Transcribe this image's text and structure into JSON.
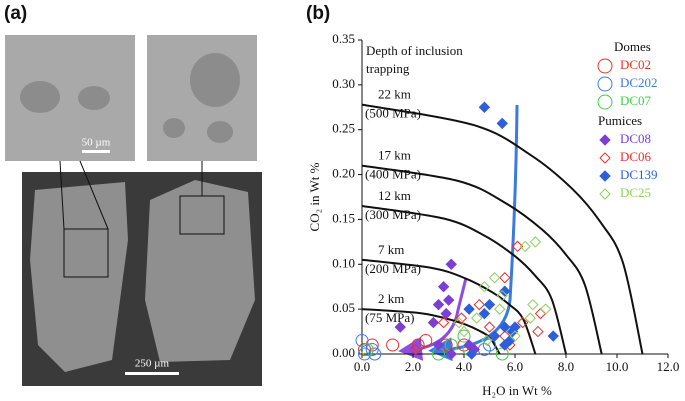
{
  "panel_a": {
    "label": "(a)",
    "scale_bar_small": "50 µm",
    "scale_bar_large": "250 µm"
  },
  "chart_data": {
    "type": "scatter",
    "panel_label": "(b)",
    "xlabel": "H₂O in Wt %",
    "ylabel": "CO₂ in Wt %",
    "annotation": [
      "Depth of inclusion",
      "trapping"
    ],
    "xlim": [
      0,
      12
    ],
    "ylim": [
      0,
      0.35
    ],
    "xticks": [
      {
        "value": 0,
        "label": "0.0"
      },
      {
        "value": 2,
        "label": "2.0"
      },
      {
        "value": 4,
        "label": "4.0"
      },
      {
        "value": 6,
        "label": "6.0"
      },
      {
        "value": 8,
        "label": "8.0"
      },
      {
        "value": 10,
        "label": "10.0"
      },
      {
        "value": 12,
        "label": "12.0"
      }
    ],
    "yticks": [
      {
        "value": 0,
        "label": "0.00"
      },
      {
        "value": 0.05,
        "label": "0.05"
      },
      {
        "value": 0.1,
        "label": "0.10"
      },
      {
        "value": 0.15,
        "label": "0.15"
      },
      {
        "value": 0.2,
        "label": "0.20"
      },
      {
        "value": 0.25,
        "label": "0.25"
      },
      {
        "value": 0.3,
        "label": "0.30"
      },
      {
        "value": 0.35,
        "label": "0.35"
      }
    ],
    "legend_titles": [
      "Domes",
      "Pumices"
    ],
    "isobars": [
      {
        "depth": "22 km",
        "pressure": "(500 MPa)",
        "x": [
          0,
          4.4,
          6.6,
          8.25,
          9.35,
          10.23,
          11
        ],
        "y": [
          0.278,
          0.255,
          0.222,
          0.184,
          0.147,
          0.102,
          0
        ]
      },
      {
        "depth": "17 km",
        "pressure": "(400 MPa)",
        "x": [
          0,
          3.76,
          5.64,
          7.05,
          7.99,
          8.74,
          9.4
        ],
        "y": [
          0.21,
          0.193,
          0.168,
          0.139,
          0.111,
          0.077,
          0
        ]
      },
      {
        "depth": "12 km",
        "pressure": "(300 MPa)",
        "x": [
          0,
          3.2,
          4.8,
          6,
          6.8,
          7.44,
          8
        ],
        "y": [
          0.165,
          0.151,
          0.132,
          0.109,
          0.087,
          0.061,
          0
        ]
      },
      {
        "depth": "7 km",
        "pressure": "(200 MPa)",
        "x": [
          0,
          2.72,
          4.08,
          5.1,
          5.78,
          6.32,
          6.8
        ],
        "y": [
          0.105,
          0.096,
          0.084,
          0.069,
          0.055,
          0.039,
          0
        ]
      },
      {
        "depth": "2 km",
        "pressure": "(75 MPa)",
        "x": [
          0,
          2.16,
          3.24,
          4.05,
          4.59,
          5.02,
          5.4
        ],
        "y": [
          0.05,
          0.046,
          0.04,
          0.033,
          0.026,
          0.018,
          0
        ]
      }
    ],
    "series": [
      {
        "name": "DC02",
        "color": "#e8302a",
        "marker": "circle",
        "filled": false,
        "x": [
          0.1,
          0.4,
          1.2,
          2.2,
          2.5,
          3.3,
          4.0
        ],
        "values": [
          0.005,
          0.01,
          0.01,
          0.01,
          0.015,
          0.01,
          0.01
        ]
      },
      {
        "name": "DC202",
        "color": "#3a7be0",
        "marker": "circle",
        "filled": false,
        "x": [
          0.0,
          0.1,
          0.4,
          0.5,
          4.8,
          5.0
        ],
        "values": [
          0.015,
          0.0,
          0.005,
          0.0,
          0.005,
          0.01
        ]
      },
      {
        "name": "DC07",
        "color": "#44cc44",
        "marker": "circle",
        "filled": false,
        "x": [
          0.2,
          3.5,
          4.0,
          5.5,
          4.2,
          3.0
        ],
        "values": [
          0.005,
          0.01,
          0.02,
          0.0,
          0.005,
          0.0
        ]
      },
      {
        "name": "DC08",
        "color": "#7b3fd4",
        "marker": "diamond",
        "filled": true,
        "x": [
          1.5,
          3.5,
          3.2,
          3.0,
          3.4,
          3.3,
          2.8,
          3.5,
          4.4,
          4.2,
          3.0
        ],
        "values": [
          0.03,
          0.1,
          0.075,
          0.055,
          0.06,
          0.045,
          0.035,
          0.0,
          0.005,
          0.01,
          0.01
        ]
      },
      {
        "name": "DC06",
        "color": "#e8302a",
        "marker": "diamond",
        "filled": false,
        "x": [
          2.1,
          3.2,
          3.9,
          4.6,
          5.6,
          6.1,
          5.0,
          5.6,
          6.9,
          6.3,
          5.8,
          7.0
        ],
        "values": [
          0.005,
          0.035,
          0.04,
          0.055,
          0.085,
          0.12,
          0.03,
          0.02,
          0.025,
          0.035,
          0.01,
          0.045
        ]
      },
      {
        "name": "DC139",
        "color": "#2f5fd8",
        "marker": "diamond",
        "filled": true,
        "x": [
          4.8,
          5.5,
          5.6,
          5.0,
          4.8,
          4.2,
          5.6,
          5.9,
          5.8,
          5.2,
          7.5,
          5.6,
          4.3,
          6.0
        ],
        "values": [
          0.275,
          0.257,
          0.07,
          0.055,
          0.045,
          0.05,
          0.03,
          0.025,
          0.015,
          0.02,
          0.02,
          0.01,
          0.0,
          0.03
        ]
      },
      {
        "name": "DC25",
        "color": "#8fd060",
        "marker": "diamond",
        "filled": false,
        "x": [
          6.4,
          6.8,
          5.2,
          4.8,
          5.5,
          6.7,
          7.2,
          4.5,
          3.8,
          4.0,
          6.0,
          6.6,
          5.4,
          4.9
        ],
        "values": [
          0.12,
          0.125,
          0.085,
          0.075,
          0.065,
          0.055,
          0.05,
          0.04,
          0.035,
          0.025,
          0.02,
          0.04,
          0.05,
          0.015
        ]
      }
    ]
  }
}
